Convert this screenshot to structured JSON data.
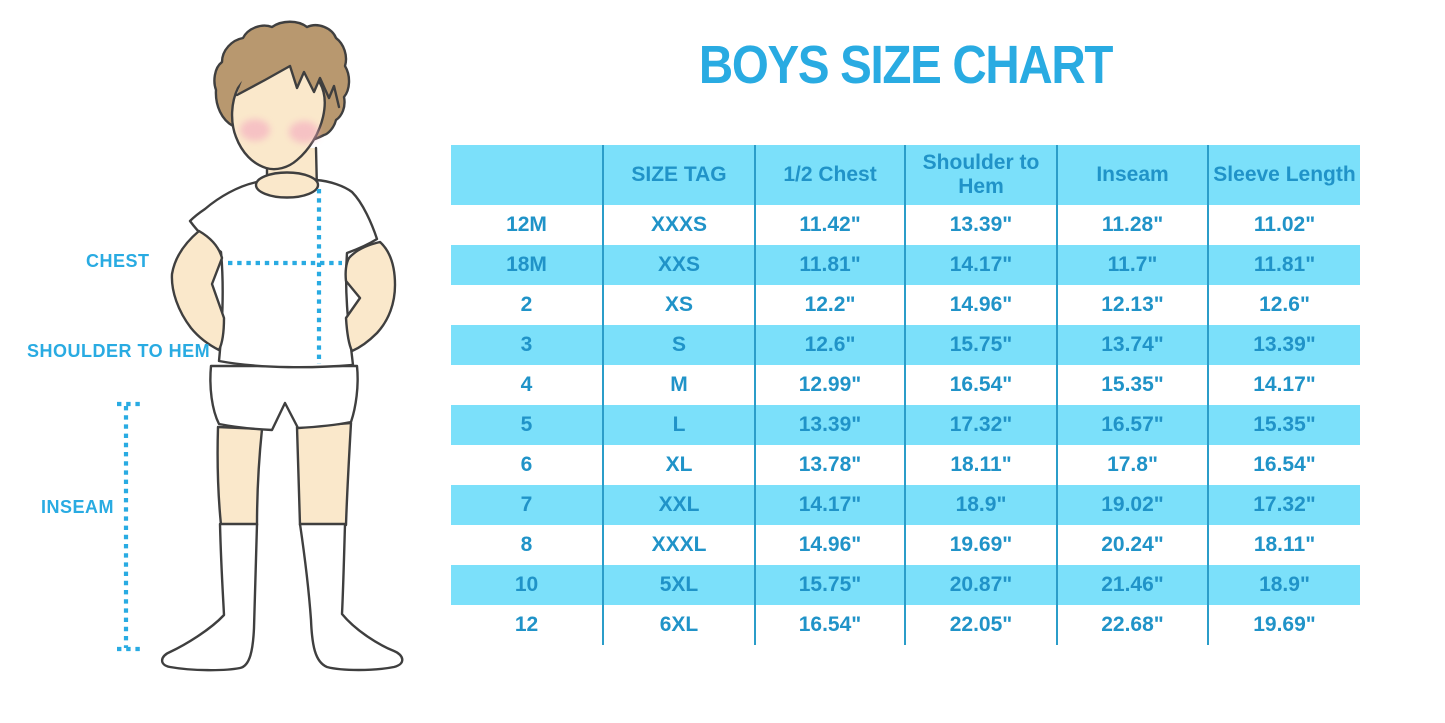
{
  "title": "BOYS SIZE CHART",
  "figure": {
    "labels": {
      "chest": "CHEST",
      "shoulder_to_hem": "SHOULDER TO HEM",
      "inseam": "INSEAM"
    },
    "illustration": "boy-in-white-tshirt-shorts-and-knee-socks"
  },
  "colors": {
    "accent": "#29ABE2",
    "table_stripe": "#7BE0FA",
    "table_line": "#2B9DC9",
    "table_text": "#2093C8",
    "hair": "#B8986F",
    "skin": "#FAE8CB",
    "cheek": "#F4ABC0",
    "outline": "#3F3F3F"
  },
  "chart_data": {
    "type": "table",
    "title": "BOYS SIZE CHART",
    "columns": [
      "",
      "SIZE TAG",
      "1/2 Chest",
      "Shoulder to\nHem",
      "Inseam",
      "Sleeve Length"
    ],
    "rows": [
      [
        "12M",
        "XXXS",
        "11.42\"",
        "13.39\"",
        "11.28\"",
        "11.02\""
      ],
      [
        "18M",
        "XXS",
        "11.81\"",
        "14.17\"",
        "11.7\"",
        "11.81\""
      ],
      [
        "2",
        "XS",
        "12.2\"",
        "14.96\"",
        "12.13\"",
        "12.6\""
      ],
      [
        "3",
        "S",
        "12.6\"",
        "15.75\"",
        "13.74\"",
        "13.39\""
      ],
      [
        "4",
        "M",
        "12.99\"",
        "16.54\"",
        "15.35\"",
        "14.17\""
      ],
      [
        "5",
        "L",
        "13.39\"",
        "17.32\"",
        "16.57\"",
        "15.35\""
      ],
      [
        "6",
        "XL",
        "13.78\"",
        "18.11\"",
        "17.8\"",
        "16.54\""
      ],
      [
        "7",
        "XXL",
        "14.17\"",
        "18.9\"",
        "19.02\"",
        "17.32\""
      ],
      [
        "8",
        "XXXL",
        "14.96\"",
        "19.69\"",
        "20.24\"",
        "18.11\""
      ],
      [
        "10",
        "5XL",
        "15.75\"",
        "20.87\"",
        "21.46\"",
        "18.9\""
      ],
      [
        "12",
        "6XL",
        "16.54\"",
        "22.05\"",
        "22.68\"",
        "19.69\""
      ]
    ],
    "layout": {
      "striped": true,
      "stripe_color": "#7BE0FA",
      "header_row": true
    }
  }
}
